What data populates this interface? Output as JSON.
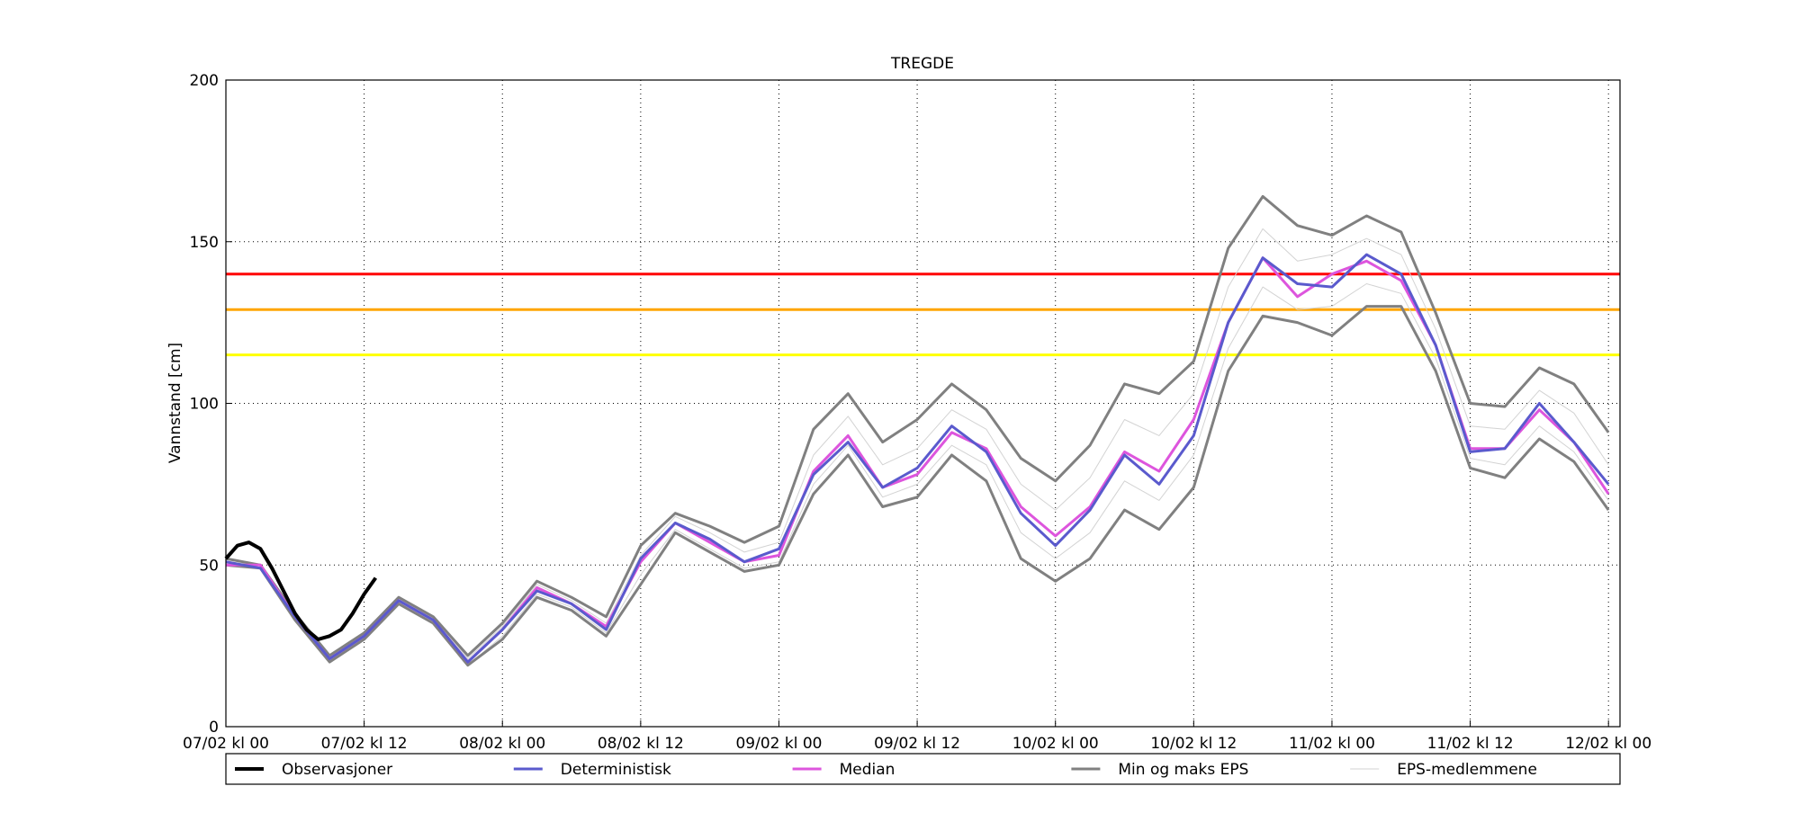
{
  "chart_data": {
    "type": "line",
    "title": "TREGDE",
    "y_label": "Vannstand [cm]",
    "xlim": [
      0,
      121
    ],
    "ylim": [
      0,
      200
    ],
    "xticks": [
      {
        "value": 0,
        "label": "07/02 kl 00"
      },
      {
        "value": 12,
        "label": "07/02 kl 12"
      },
      {
        "value": 24,
        "label": "08/02 kl 00"
      },
      {
        "value": 36,
        "label": "08/02 kl 12"
      },
      {
        "value": 48,
        "label": "09/02 kl 00"
      },
      {
        "value": 60,
        "label": "09/02 kl 12"
      },
      {
        "value": 72,
        "label": "10/02 kl 00"
      },
      {
        "value": 84,
        "label": "10/02 kl 12"
      },
      {
        "value": 96,
        "label": "11/02 kl 00"
      },
      {
        "value": 108,
        "label": "11/02 kl 12"
      },
      {
        "value": 120,
        "label": "12/02 kl 00"
      }
    ],
    "yticks": [
      0,
      50,
      100,
      150,
      200
    ],
    "grid": true,
    "x": [
      0,
      3,
      6,
      9,
      12,
      15,
      18,
      21,
      24,
      27,
      30,
      33,
      36,
      39,
      42,
      45,
      48,
      51,
      54,
      57,
      60,
      63,
      66,
      69,
      72,
      75,
      78,
      81,
      84,
      87,
      90,
      93,
      96,
      99,
      102,
      105,
      108,
      111,
      114,
      117,
      120
    ],
    "thresholds": [
      {
        "value": 140,
        "color": "#ff0000"
      },
      {
        "value": 129,
        "color": "#ffa500"
      },
      {
        "value": 115,
        "color": "#ffff00"
      }
    ],
    "series": [
      {
        "name": "EPS-medlemmene",
        "color": "#d3d3d3",
        "members": [
          [
            51,
            50,
            35,
            21,
            29,
            40,
            34,
            21,
            31,
            44,
            39,
            32,
            53,
            65,
            60,
            54,
            57,
            84,
            96,
            81,
            86,
            98,
            92,
            75,
            67,
            77,
            95,
            90,
            103,
            136,
            154,
            144,
            146,
            151,
            146,
            123,
            93,
            92,
            104,
            97,
            81
          ],
          [
            50,
            49,
            33,
            20,
            27,
            38,
            32,
            19,
            28,
            41,
            37,
            29,
            47,
            61,
            55,
            49,
            51,
            75,
            87,
            71,
            75,
            87,
            81,
            60,
            52,
            60,
            76,
            70,
            84,
            117,
            136,
            129,
            130,
            137,
            134,
            114,
            83,
            81,
            93,
            85,
            70
          ]
        ]
      },
      {
        "name": "Min og maks EPS",
        "color": "#808080",
        "min": [
          50,
          49,
          33,
          20,
          27,
          38,
          32,
          19,
          27,
          40,
          36,
          28,
          44,
          60,
          54,
          48,
          50,
          72,
          84,
          68,
          71,
          84,
          76,
          52,
          45,
          52,
          67,
          61,
          74,
          110,
          127,
          125,
          121,
          130,
          130,
          110,
          80,
          77,
          89,
          82,
          67
        ],
        "max": [
          52,
          50,
          35,
          22,
          29,
          40,
          34,
          22,
          32,
          45,
          40,
          34,
          56,
          66,
          62,
          57,
          62,
          92,
          103,
          88,
          95,
          106,
          98,
          83,
          76,
          87,
          106,
          103,
          113,
          148,
          164,
          155,
          152,
          158,
          153,
          128,
          100,
          99,
          111,
          106,
          91
        ]
      },
      {
        "name": "Median",
        "color": "#dd55dd",
        "values": [
          50,
          50,
          34,
          21,
          28,
          39,
          33,
          20,
          30,
          43,
          38,
          31,
          51,
          63,
          57,
          51,
          53,
          79,
          90,
          74,
          78,
          91,
          86,
          68,
          59,
          68,
          85,
          79,
          95,
          125,
          145,
          133,
          140,
          144,
          138,
          118,
          86,
          86,
          98,
          88,
          72
        ]
      },
      {
        "name": "Deterministisk",
        "color": "#5a5acd",
        "values": [
          51,
          49,
          34,
          21,
          28,
          39,
          33,
          20,
          30,
          42,
          38,
          30,
          52,
          63,
          58,
          51,
          55,
          78,
          88,
          74,
          80,
          93,
          85,
          66,
          56,
          67,
          84,
          75,
          90,
          125,
          145,
          137,
          136,
          146,
          140,
          118,
          85,
          86,
          100,
          88,
          75
        ]
      },
      {
        "name": "Observasjoner",
        "color": "#000000",
        "x": [
          0,
          1,
          2,
          3,
          4,
          5,
          6,
          7,
          8,
          9,
          10,
          11,
          12,
          13
        ],
        "values": [
          52,
          56,
          57,
          55,
          49,
          42,
          35,
          30,
          27,
          28,
          30,
          35,
          41,
          46
        ]
      }
    ],
    "legend_order": [
      4,
      3,
      2,
      1,
      0
    ]
  }
}
